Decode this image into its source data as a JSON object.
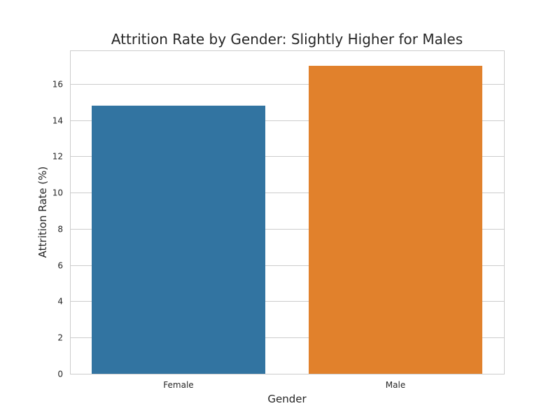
{
  "chart_data": {
    "type": "bar",
    "title": "Attrition Rate by Gender: Slightly Higher for Males",
    "xlabel": "Gender",
    "ylabel": "Attrition Rate (%)",
    "categories": [
      "Female",
      "Male"
    ],
    "values": [
      14.8,
      17.0
    ],
    "ylim": [
      0,
      17.85
    ],
    "yticks": [
      0,
      2,
      4,
      6,
      8,
      10,
      12,
      14,
      16
    ],
    "grid": true,
    "legend": "none",
    "colors": [
      "#3274a1",
      "#e1812c"
    ]
  }
}
